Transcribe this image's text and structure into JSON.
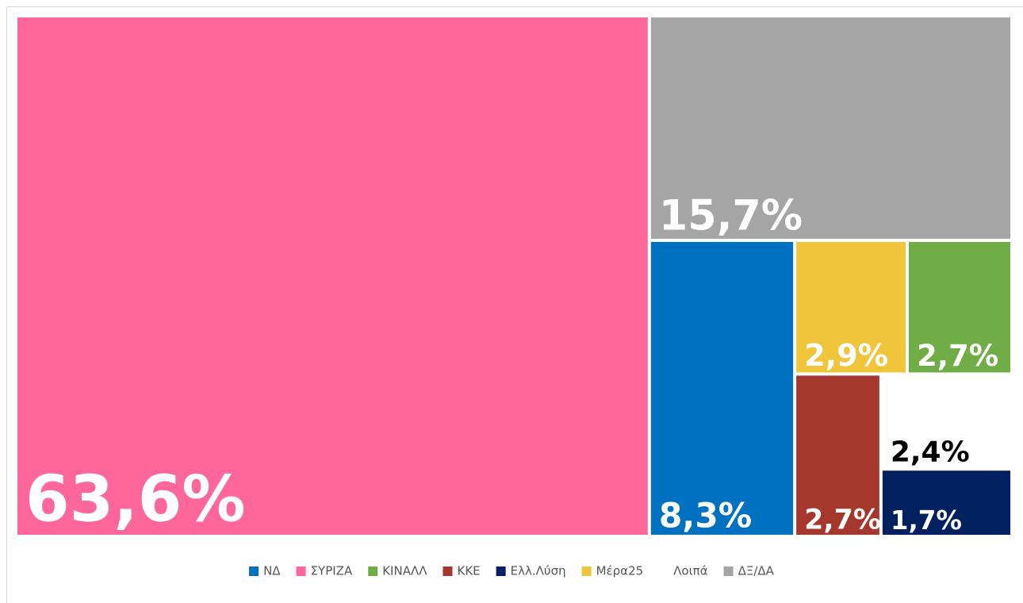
{
  "chart_data": {
    "type": "treemap",
    "categories": [
      "ΝΔ",
      "ΣΥΡΙΖΑ",
      "ΚΙΝΑΛΛ",
      "ΚΚΕ",
      "Ελλ.Λύση",
      "Μέρα25",
      "Λοιπά",
      "ΔΞ/ΔΑ"
    ],
    "values": [
      8.3,
      63.6,
      2.7,
      2.7,
      1.7,
      2.9,
      2.4,
      15.7
    ],
    "value_labels": [
      "8,3%",
      "63,6%",
      "2,7%",
      "2,7%",
      "1,7%",
      "2,9%",
      "2,4%",
      "15,7%"
    ],
    "colors": [
      "#0070c0",
      "#ff6699",
      "#70ad47",
      "#a5372d",
      "#002060",
      "#f0c53a",
      "#ffffff",
      "#a5a5a5"
    ],
    "legend": "bottom"
  }
}
